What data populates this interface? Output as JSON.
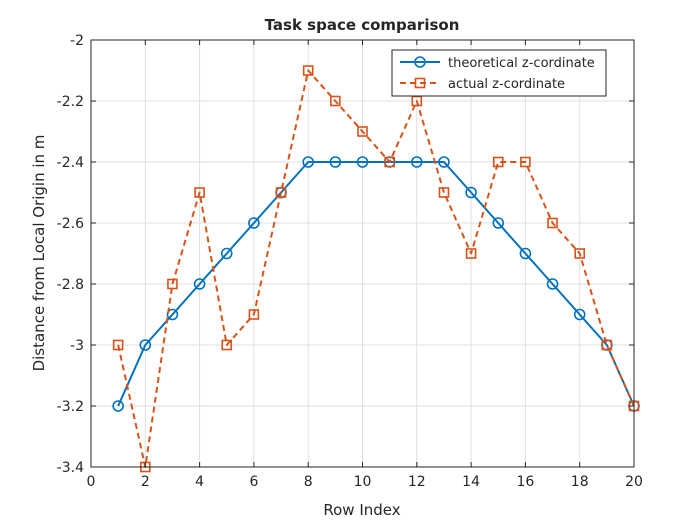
{
  "chart_data": {
    "type": "line",
    "title": "Task space comparison",
    "xlabel": "Row Index",
    "ylabel": "Distance from Local Origin in m",
    "xlim": [
      0,
      20
    ],
    "ylim": [
      -3.4,
      -2
    ],
    "xticks": [
      0,
      2,
      4,
      6,
      8,
      10,
      12,
      14,
      16,
      18,
      20
    ],
    "yticks": [
      -2,
      -2.2,
      -2.4,
      -2.6,
      -2.8,
      -3,
      -3.2,
      -3.4
    ],
    "grid": true,
    "legend_position": "top-right",
    "x": [
      1,
      2,
      3,
      4,
      5,
      6,
      7,
      8,
      9,
      10,
      11,
      12,
      13,
      14,
      15,
      16,
      17,
      18,
      19,
      20
    ],
    "series": [
      {
        "name": "theoretical z-cordinate",
        "color": "#0072BD",
        "line_style": "solid",
        "marker": "circle",
        "values": [
          -3.2,
          -3.0,
          -2.9,
          -2.8,
          -2.7,
          -2.6,
          -2.5,
          -2.4,
          -2.4,
          -2.4,
          -2.4,
          -2.4,
          -2.4,
          -2.5,
          -2.6,
          -2.7,
          -2.8,
          -2.9,
          -3.0,
          -3.2
        ]
      },
      {
        "name": "actual z-cordinate",
        "color": "#D95319",
        "line_style": "dashed",
        "marker": "square",
        "values": [
          -3.0,
          -3.4,
          -2.8,
          -2.5,
          -3.0,
          -2.9,
          -2.5,
          -2.1,
          -2.2,
          -2.3,
          -2.4,
          -2.2,
          -2.5,
          -2.7,
          -2.4,
          -2.4,
          -2.6,
          -2.7,
          -3.0,
          -3.2
        ]
      }
    ]
  }
}
